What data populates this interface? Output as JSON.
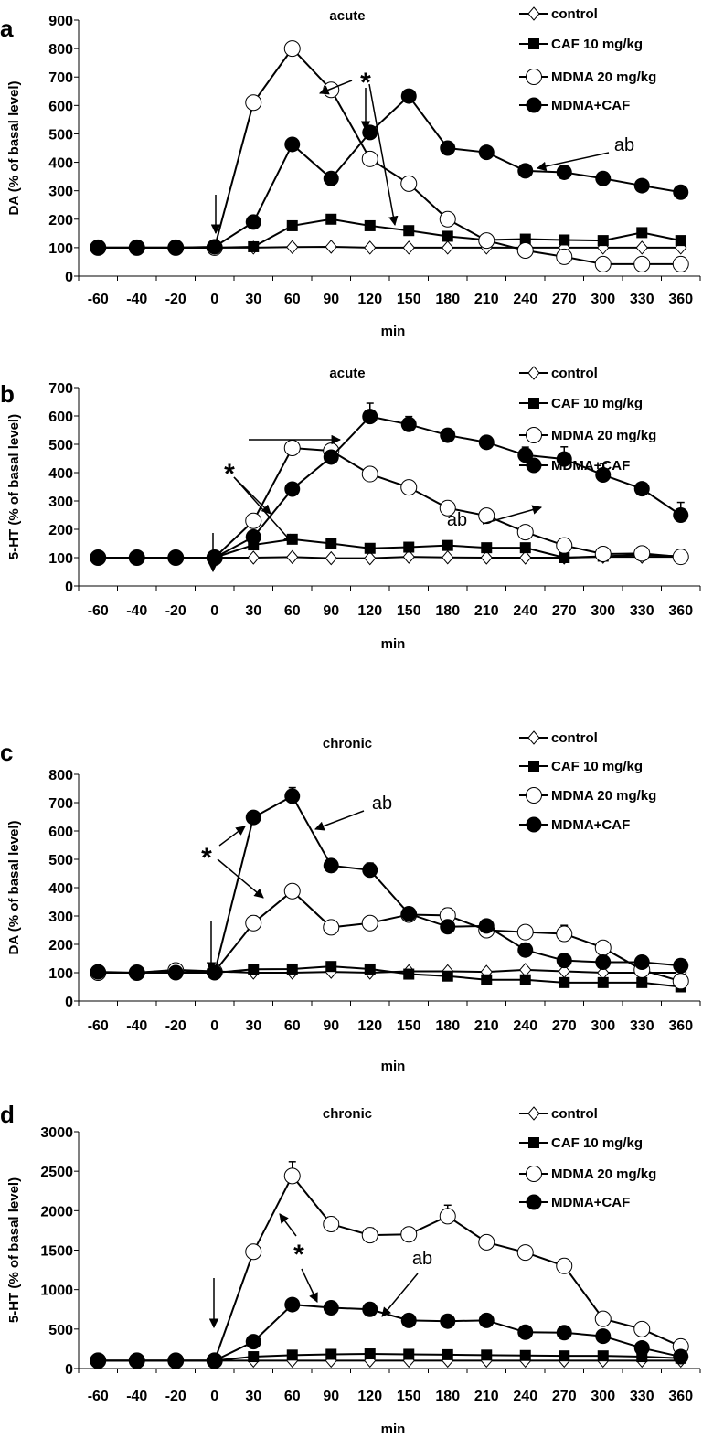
{
  "chart_data": [
    {
      "type": "line",
      "panel_letter": "a",
      "title": "acute",
      "xlabel": "min",
      "ylabel": "DA (% of basal level)",
      "categories": [
        "-60",
        "-40",
        "-20",
        "0",
        "30",
        "60",
        "90",
        "120",
        "150",
        "180",
        "210",
        "240",
        "270",
        "300",
        "330",
        "360"
      ],
      "ylim": [
        0,
        900
      ],
      "ytick_step": 100,
      "series": [
        {
          "name": "control",
          "marker": "diamond-open",
          "values": [
            100,
            100,
            100,
            100,
            100,
            102,
            103,
            100,
            100,
            100,
            100,
            100,
            100,
            100,
            100,
            100
          ]
        },
        {
          "name": "CAF 10 mg/kg",
          "marker": "square-filled",
          "values": [
            100,
            100,
            100,
            100,
            103,
            177,
            200,
            177,
            160,
            140,
            127,
            130,
            127,
            125,
            153,
            125
          ]
        },
        {
          "name": "MDMA 20 mg/kg",
          "marker": "circle-open",
          "values": [
            100,
            100,
            100,
            100,
            610,
            800,
            655,
            412,
            325,
            200,
            125,
            90,
            68,
            42,
            42,
            42
          ]
        },
        {
          "name": "MDMA+CAF",
          "marker": "circle-filled",
          "values": [
            100,
            100,
            100,
            103,
            190,
            463,
            343,
            505,
            633,
            450,
            435,
            370,
            365,
            343,
            318,
            295
          ]
        }
      ],
      "annotations": {
        "star": "*",
        "ab": "ab"
      }
    },
    {
      "type": "line",
      "panel_letter": "b",
      "title": "acute",
      "xlabel": "min",
      "ylabel": "5-HT (% of basal level)",
      "categories": [
        "-60",
        "-40",
        "-20",
        "0",
        "30",
        "60",
        "90",
        "120",
        "150",
        "180",
        "210",
        "240",
        "270",
        "300",
        "330",
        "360"
      ],
      "ylim": [
        0,
        700
      ],
      "ytick_step": 100,
      "series": [
        {
          "name": "control",
          "marker": "diamond-open",
          "values": [
            100,
            100,
            100,
            100,
            100,
            102,
            98,
            98,
            103,
            101,
            100,
            100,
            100,
            103,
            103,
            103
          ]
        },
        {
          "name": "CAF 10 mg/kg",
          "marker": "square-filled",
          "values": [
            100,
            100,
            100,
            100,
            145,
            165,
            150,
            133,
            137,
            143,
            135,
            135,
            100,
            105,
            110,
            105
          ]
        },
        {
          "name": "MDMA 20 mg/kg",
          "marker": "circle-open",
          "values": [
            100,
            100,
            100,
            100,
            230,
            487,
            477,
            395,
            348,
            275,
            248,
            190,
            143,
            113,
            115,
            103
          ]
        },
        {
          "name": "MDMA+CAF",
          "marker": "circle-filled",
          "values": [
            100,
            100,
            100,
            100,
            173,
            342,
            455,
            598,
            570,
            532,
            507,
            462,
            448,
            392,
            343,
            250
          ],
          "error": [
            null,
            null,
            null,
            null,
            null,
            null,
            null,
            47,
            28,
            null,
            15,
            28,
            43,
            40,
            null,
            45
          ]
        }
      ],
      "annotations": {
        "star": "*",
        "ab": "ab"
      }
    },
    {
      "type": "line",
      "panel_letter": "c",
      "title": "chronic",
      "xlabel": "min",
      "ylabel": "DA (% of basal level)",
      "categories": [
        "-60",
        "-40",
        "-20",
        "0",
        "30",
        "60",
        "90",
        "120",
        "150",
        "180",
        "210",
        "240",
        "270",
        "300",
        "330",
        "360"
      ],
      "ylim": [
        0,
        800
      ],
      "ytick_step": 100,
      "series": [
        {
          "name": "control",
          "marker": "diamond-open",
          "values": [
            100,
            100,
            110,
            105,
            100,
            100,
            103,
            100,
            105,
            105,
            103,
            110,
            105,
            100,
            100,
            100
          ]
        },
        {
          "name": "CAF 10 mg/kg",
          "marker": "square-filled",
          "values": [
            100,
            100,
            100,
            100,
            112,
            113,
            122,
            113,
            95,
            88,
            75,
            75,
            65,
            65,
            65,
            50
          ]
        },
        {
          "name": "MDMA 20 mg/kg",
          "marker": "circle-open",
          "values": [
            100,
            100,
            108,
            103,
            275,
            388,
            260,
            275,
            305,
            302,
            250,
            243,
            237,
            188,
            110,
            70
          ],
          "error": [
            null,
            null,
            null,
            null,
            25,
            20,
            15,
            20,
            15,
            25,
            null,
            null,
            30,
            null,
            null,
            null
          ]
        },
        {
          "name": "MDMA+CAF",
          "marker": "circle-filled",
          "values": [
            103,
            100,
            100,
            100,
            648,
            723,
            478,
            462,
            308,
            262,
            265,
            180,
            143,
            137,
            137,
            125
          ],
          "error": [
            null,
            null,
            null,
            null,
            null,
            30,
            null,
            25,
            null,
            null,
            null,
            null,
            null,
            null,
            null,
            null
          ]
        }
      ],
      "annotations": {
        "star": "*",
        "ab": "ab"
      }
    },
    {
      "type": "line",
      "panel_letter": "d",
      "title": "chronic",
      "xlabel": "min",
      "ylabel": "5-HT (% of basal level)",
      "categories": [
        "-60",
        "-40",
        "-20",
        "0",
        "30",
        "60",
        "90",
        "120",
        "150",
        "180",
        "210",
        "240",
        "270",
        "300",
        "330",
        "360"
      ],
      "ylim": [
        0,
        3000
      ],
      "ytick_step": 500,
      "series": [
        {
          "name": "control",
          "marker": "diamond-open",
          "values": [
            100,
            100,
            100,
            100,
            100,
            100,
            100,
            100,
            100,
            100,
            100,
            100,
            100,
            100,
            100,
            100
          ]
        },
        {
          "name": "CAF 10 mg/kg",
          "marker": "square-filled",
          "values": [
            100,
            100,
            100,
            100,
            150,
            170,
            180,
            185,
            180,
            175,
            170,
            165,
            160,
            160,
            150,
            130
          ]
        },
        {
          "name": "MDMA 20 mg/kg",
          "marker": "circle-open",
          "values": [
            100,
            100,
            100,
            100,
            1480,
            2440,
            1830,
            1690,
            1700,
            1930,
            1600,
            1470,
            1300,
            630,
            500,
            280
          ],
          "error": [
            null,
            null,
            null,
            null,
            null,
            180,
            90,
            90,
            70,
            140,
            null,
            null,
            null,
            null,
            null,
            null
          ]
        },
        {
          "name": "MDMA+CAF",
          "marker": "circle-filled",
          "values": [
            100,
            100,
            100,
            100,
            340,
            810,
            770,
            750,
            610,
            600,
            610,
            460,
            455,
            410,
            260,
            150
          ]
        }
      ],
      "annotations": {
        "star": "*",
        "ab": "ab"
      }
    }
  ]
}
